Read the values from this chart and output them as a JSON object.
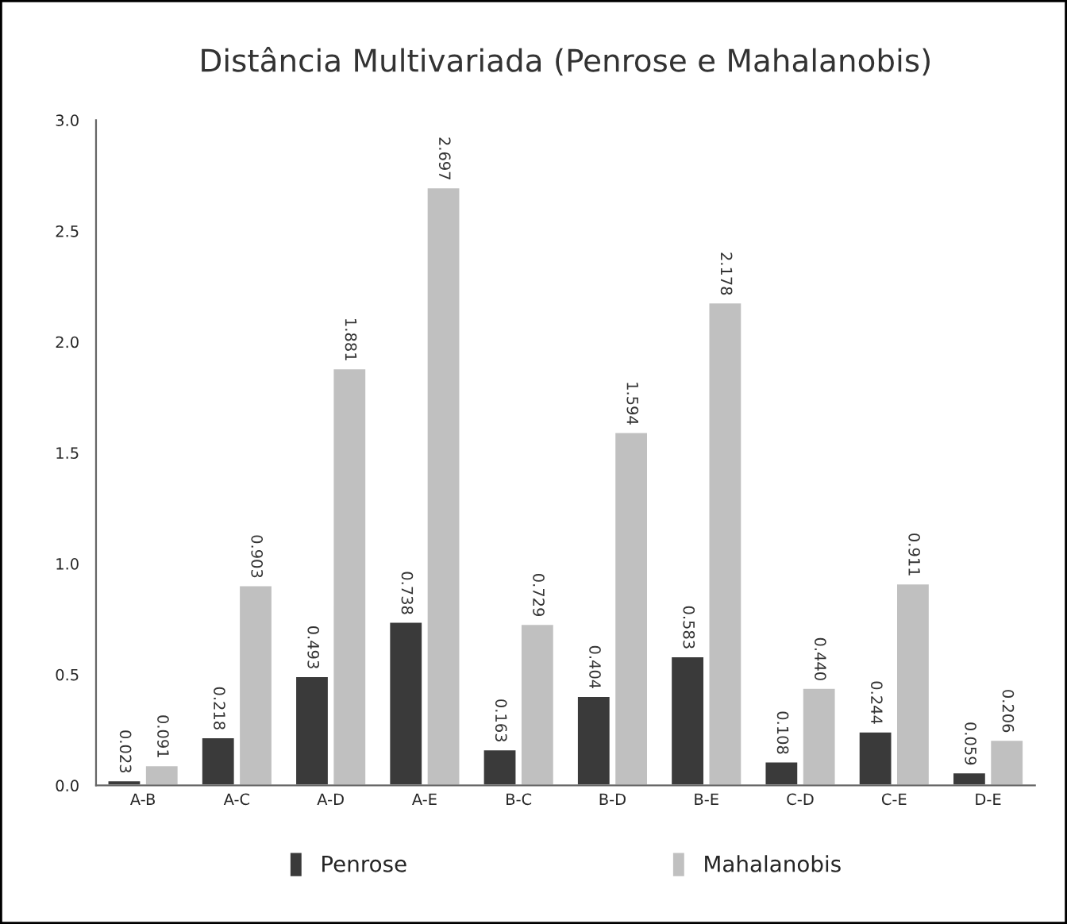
{
  "chart_data": {
    "type": "bar",
    "title": "Distância Multivariada (Penrose e Mahalanobis)",
    "categories": [
      "A-B",
      "A-C",
      "A-D",
      "A-E",
      "B-C",
      "B-D",
      "B-E",
      "C-D",
      "C-E",
      "D-E"
    ],
    "series": [
      {
        "name": "Penrose",
        "color": "#3a3a3a",
        "values": [
          0.023,
          0.218,
          0.493,
          0.738,
          0.163,
          0.404,
          0.583,
          0.108,
          0.244,
          0.059
        ],
        "value_labels": [
          "0.023",
          "0.218",
          "0.493",
          "0.738",
          "0.163",
          "0.404",
          "0.583",
          "0.108",
          "0.244",
          "0.059"
        ]
      },
      {
        "name": "Mahalanobis",
        "color": "#c0c0c0",
        "values": [
          0.091,
          0.903,
          1.881,
          2.697,
          0.729,
          1.594,
          2.178,
          0.44,
          0.911,
          0.206
        ],
        "value_labels": [
          "0.091",
          "0.903",
          "1.881",
          "2.697",
          "0.729",
          "1.594",
          "2.178",
          "0.440",
          "0.911",
          "0.206"
        ]
      }
    ],
    "ylim": [
      0,
      3.0
    ],
    "yticks": [
      {
        "value": 0,
        "label": "0.0"
      },
      {
        "value": 0.5,
        "label": "0.5"
      },
      {
        "value": 1.0,
        "label": "1.0"
      },
      {
        "value": 1.5,
        "label": "1.5"
      },
      {
        "value": 2.0,
        "label": "2.0"
      },
      {
        "value": 2.5,
        "label": "2.5"
      },
      {
        "value": 3.0,
        "label": "3.0"
      }
    ],
    "grid": false,
    "legend": "bottom"
  }
}
